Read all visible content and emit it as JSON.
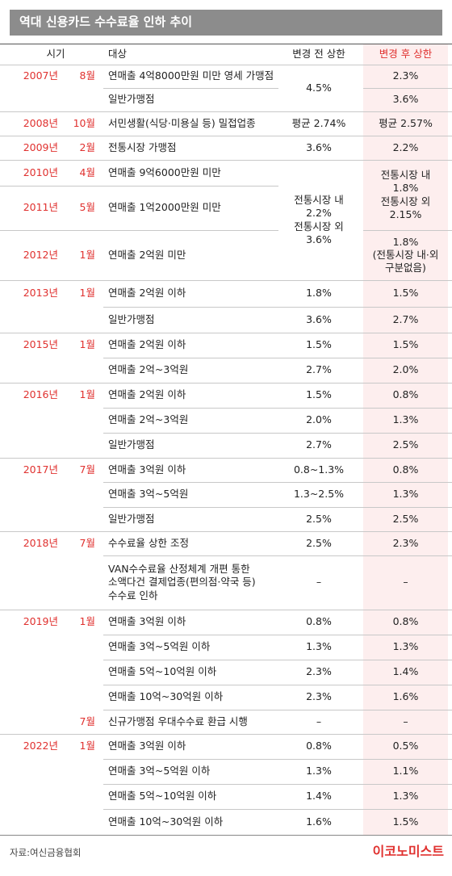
{
  "title": "역대 신용카드 수수료율 인하 추이",
  "header": [
    "시기",
    "대상",
    "변경 전 상한",
    "변경 후 상한"
  ],
  "rows": [
    {
      "year": "2007년",
      "month": "8월",
      "target": "연매출 4억8000만원 미만 영세 가맹점",
      "before": "4.5%",
      "after": "2.3%"
    },
    {
      "target": "일반가맹점",
      "after": "3.6%"
    },
    {
      "year": "2008년",
      "month": "10월",
      "target": "서민생활(식당·미용실 등) 밀접업종",
      "before": "평균 2.74%",
      "after": "평균 2.57%"
    },
    {
      "year": "2009년",
      "month": "2월",
      "target": "전통시장 가맹점",
      "before": "3.6%",
      "after": "2.2%"
    },
    {
      "year": "2010년",
      "month": "4월",
      "target": "연매출 9억6000만원 미만",
      "before": "전통시장 내\n2.2%\n전통시장 외\n3.6%",
      "after": "전통시장 내\n1.8%\n전통시장 외\n2.15%"
    },
    {
      "year": "2011년",
      "month": "5월",
      "target": "연매출 1억2000만원 미만"
    },
    {
      "year": "2012년",
      "month": "1월",
      "target": "연매출 2억원 미만",
      "after": "1.8%\n(전통시장 내·외\n구분없음)"
    },
    {
      "year": "2013년",
      "month": "1월",
      "target": "연매출 2억원 이하",
      "before": "1.8%",
      "after": "1.5%"
    },
    {
      "target": "일반가맹점",
      "before": "3.6%",
      "after": "2.7%"
    },
    {
      "year": "2015년",
      "month": "1월",
      "target": "연매출 2억원 이하",
      "before": "1.5%",
      "after": "1.5%"
    },
    {
      "target": "연매출 2억~3억원",
      "before": "2.7%",
      "after": "2.0%"
    },
    {
      "year": "2016년",
      "month": "1월",
      "target": "연매출 2억원 이하",
      "before": "1.5%",
      "after": "0.8%"
    },
    {
      "target": "연매출 2억~3억원",
      "before": "2.0%",
      "after": "1.3%"
    },
    {
      "target": "일반가맹점",
      "before": "2.7%",
      "after": "2.5%"
    },
    {
      "year": "2017년",
      "month": "7월",
      "target": "연매출 3억원 이하",
      "before": "0.8~1.3%",
      "after": "0.8%"
    },
    {
      "target": "연매출 3억~5억원",
      "before": "1.3~2.5%",
      "after": "1.3%"
    },
    {
      "target": "일반가맹점",
      "before": "2.5%",
      "after": "2.5%"
    },
    {
      "year": "2018년",
      "month": "7월",
      "target": "수수료율 상한 조정",
      "before": "2.5%",
      "after": "2.3%"
    },
    {
      "target": "VAN수수료율 산정체계 개편 통한\n소액다건 결제업종(편의점·약국 등)\n수수료 인하",
      "before": "–",
      "after": "–"
    },
    {
      "year": "2019년",
      "month": "1월",
      "target": "연매출 3억원 이하",
      "before": "0.8%",
      "after": "0.8%"
    },
    {
      "target": "연매출 3억~5억원 이하",
      "before": "1.3%",
      "after": "1.3%"
    },
    {
      "target": "연매출 5억~10억원 이하",
      "before": "2.3%",
      "after": "1.4%"
    },
    {
      "target": "연매출 10억~30억원 이하",
      "before": "2.3%",
      "after": "1.6%"
    },
    {
      "month": "7월",
      "target": "신규가맹점 우대수수료 환급 시행",
      "before": "–",
      "after": "–"
    },
    {
      "year": "2022년",
      "month": "1월",
      "target": "연매출 3억원 이하",
      "before": "0.8%",
      "after": "0.5%"
    },
    {
      "target": "연매출 3억~5억원 이하",
      "before": "1.3%",
      "after": "1.1%"
    },
    {
      "target": "연매출 5억~10억원 이하",
      "before": "1.4%",
      "after": "1.3%"
    },
    {
      "target": "연매출 10억~30억원 이하",
      "before": "1.6%",
      "after": "1.5%"
    }
  ],
  "source": "자료:여신금융협회",
  "logo": "이코노미스트"
}
